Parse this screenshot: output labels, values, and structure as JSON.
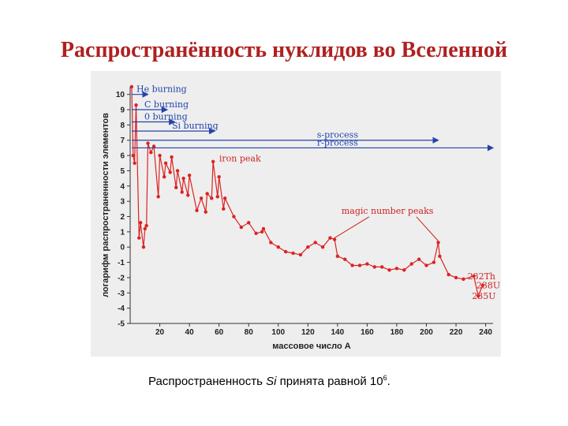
{
  "slide": {
    "title": "Распространённость нуклидов во Вселенной",
    "caption_prefix": "Распространенность ",
    "caption_element": "Si",
    "caption_middle": " принята равной 10",
    "caption_exponent": "6",
    "caption_suffix": "."
  },
  "colors": {
    "title": "#b02020",
    "data": "#dd2222",
    "process": "#2244aa",
    "panel": "#eeeeee"
  },
  "chart_data": {
    "type": "line",
    "xlabel": "массовое число А",
    "ylabel": "логарифм распространенности элементов",
    "xlim": [
      0,
      245
    ],
    "ylim": [
      -5,
      10.5
    ],
    "xticks": [
      20,
      40,
      60,
      80,
      100,
      120,
      140,
      160,
      180,
      200,
      220,
      240
    ],
    "yticks": [
      10,
      9,
      8,
      7,
      6,
      5,
      4,
      3,
      2,
      1,
      0,
      -1,
      -2,
      -3,
      -4,
      -5
    ],
    "grid": false,
    "series": [
      {
        "x": [
          1,
          2,
          3,
          4,
          6,
          7,
          9,
          10,
          11,
          12,
          14,
          16,
          19,
          20,
          23,
          24,
          27,
          28,
          31,
          32,
          35,
          36,
          39,
          40,
          45,
          48,
          51,
          52,
          55,
          56,
          59,
          60,
          63,
          64,
          70,
          75,
          80,
          85,
          89,
          90,
          95,
          100,
          105,
          110,
          115,
          120,
          125,
          130,
          135,
          138,
          140,
          145,
          150,
          155,
          160,
          165,
          170,
          175,
          180,
          185,
          190,
          195,
          200,
          205,
          208,
          209,
          215,
          220,
          225,
          232,
          235,
          238
        ],
        "y": [
          10.5,
          6.0,
          5.5,
          9.3,
          0.6,
          1.6,
          0.0,
          1.2,
          1.4,
          6.8,
          6.2,
          6.6,
          3.3,
          6.0,
          4.6,
          5.5,
          4.9,
          5.9,
          3.9,
          5.0,
          3.6,
          4.5,
          3.4,
          4.7,
          2.4,
          3.2,
          2.3,
          3.5,
          3.2,
          5.6,
          3.3,
          4.6,
          2.5,
          3.2,
          2.0,
          1.3,
          1.6,
          0.9,
          1.0,
          1.2,
          0.3,
          0.0,
          -0.3,
          -0.4,
          -0.5,
          0.0,
          0.3,
          0.0,
          0.6,
          0.5,
          -0.6,
          -0.8,
          -1.2,
          -1.2,
          -1.1,
          -1.3,
          -1.3,
          -1.5,
          -1.4,
          -1.5,
          -1.1,
          -0.8,
          -1.2,
          -1.0,
          0.3,
          -0.6,
          -1.8,
          -2.0,
          -2.1,
          -1.9,
          -3.2,
          -2.5
        ],
        "color": "#dd2222"
      }
    ],
    "processes": [
      {
        "label": "He burning",
        "y": 10.0,
        "x_end": 12
      },
      {
        "label": "C burning",
        "y": 9.0,
        "x_end": 25
      },
      {
        "label": "0 burning",
        "y": 8.2,
        "x_end": 30
      },
      {
        "label": "Si burning",
        "y": 7.6,
        "x_end": 57
      },
      {
        "label": "s-process",
        "y": 7.0,
        "x_end": 208
      },
      {
        "label": "r-process",
        "y": 6.5,
        "x_end": 245
      }
    ],
    "annotations": [
      {
        "label": "iron peak",
        "x": 58,
        "y": 5.4
      },
      {
        "label": "magic number peaks",
        "x": 140,
        "y": 2.4
      },
      {
        "label": "232Th",
        "x": 232,
        "y": -1.9
      },
      {
        "label": "238U",
        "x": 238,
        "y": -2.5
      },
      {
        "label": "235U",
        "x": 235,
        "y": -3.2
      }
    ]
  }
}
